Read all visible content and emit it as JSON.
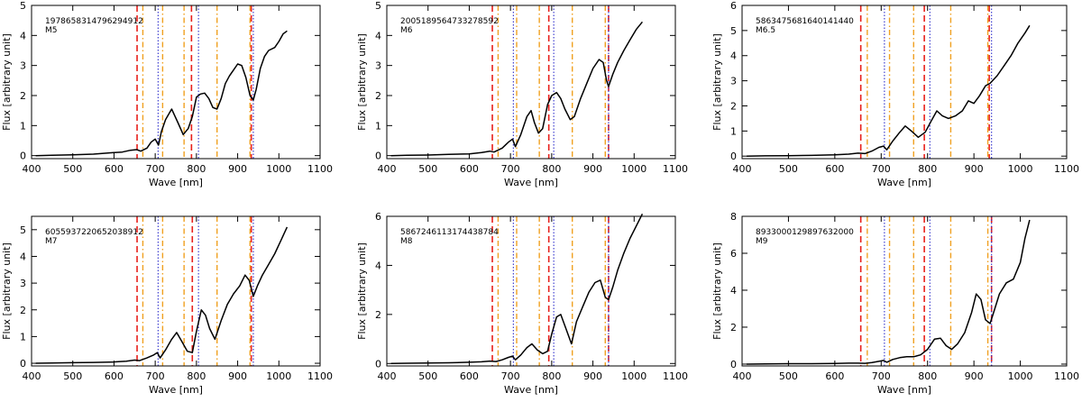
{
  "figure_title": "",
  "colors": {
    "line_red": "#e8201b",
    "line_orange": "#f0a020",
    "line_blue": "#3030cc",
    "spectrum": "#000000"
  },
  "chart_data": [
    {
      "type": "line",
      "id_label": "1978658314796294912",
      "spectral_type": "M5",
      "xlabel": "Wave [nm]",
      "ylabel": "Flux [arbitrary unit]",
      "xlim": [
        400,
        1100
      ],
      "ylim": [
        -0.1,
        5
      ],
      "xticks": [
        "400",
        "500",
        "600",
        "700",
        "800",
        "900",
        "1000",
        "1100"
      ],
      "yticks": [
        "0",
        "1",
        "2",
        "3",
        "4",
        "5"
      ],
      "lines": {
        "red_dashed": [
          656,
          788,
          933
        ],
        "orange_dashdot": [
          670,
          718,
          770,
          850,
          930
        ],
        "blue_dotted": [
          707,
          805,
          938
        ]
      },
      "x": [
        410,
        450,
        500,
        550,
        600,
        620,
        640,
        655,
        665,
        680,
        690,
        700,
        708,
        715,
        725,
        740,
        755,
        768,
        780,
        790,
        800,
        810,
        820,
        830,
        840,
        850,
        860,
        870,
        880,
        890,
        900,
        910,
        920,
        930,
        938,
        945,
        955,
        965,
        975,
        990,
        1000,
        1010,
        1020
      ],
      "y": [
        0,
        0.01,
        0.03,
        0.05,
        0.1,
        0.12,
        0.18,
        0.2,
        0.15,
        0.25,
        0.45,
        0.55,
        0.35,
        0.8,
        1.2,
        1.55,
        1.1,
        0.7,
        0.9,
        1.3,
        1.95,
        2.05,
        2.08,
        1.9,
        1.6,
        1.55,
        1.9,
        2.4,
        2.65,
        2.85,
        3.05,
        3.0,
        2.6,
        2.0,
        1.85,
        2.2,
        2.9,
        3.3,
        3.5,
        3.6,
        3.8,
        4.05,
        4.15
      ]
    },
    {
      "type": "line",
      "id_label": "2005189564733278592",
      "spectral_type": "M6",
      "xlabel": "Wave [nm]",
      "ylabel": "Flux [arbitrary unit]",
      "xlim": [
        400,
        1100
      ],
      "ylim": [
        -0.1,
        5
      ],
      "xticks": [
        "400",
        "500",
        "600",
        "700",
        "800",
        "900",
        "1000",
        "1100"
      ],
      "yticks": [
        "0",
        "1",
        "2",
        "3",
        "4",
        "5"
      ],
      "lines": {
        "red_dashed": [
          656,
          793,
          938
        ],
        "orange_dashdot": [
          670,
          715,
          770,
          850,
          930
        ],
        "blue_dotted": [
          707,
          805,
          938
        ]
      },
      "x": [
        410,
        450,
        500,
        550,
        600,
        630,
        650,
        660,
        680,
        695,
        705,
        712,
        725,
        740,
        750,
        758,
        768,
        778,
        790,
        800,
        812,
        822,
        832,
        845,
        855,
        870,
        885,
        900,
        915,
        925,
        933,
        938,
        948,
        960,
        975,
        990,
        1005,
        1020
      ],
      "y": [
        0,
        0.01,
        0.02,
        0.04,
        0.06,
        0.1,
        0.15,
        0.12,
        0.25,
        0.45,
        0.55,
        0.3,
        0.7,
        1.3,
        1.5,
        1.1,
        0.75,
        0.9,
        1.7,
        2.0,
        2.1,
        1.9,
        1.55,
        1.2,
        1.3,
        1.9,
        2.4,
        2.9,
        3.2,
        3.1,
        2.5,
        2.3,
        2.7,
        3.1,
        3.5,
        3.85,
        4.2,
        4.45
      ]
    },
    {
      "type": "line",
      "id_label": "5863475681640141440",
      "spectral_type": "M6.5",
      "xlabel": "Wave [nm]",
      "ylabel": "Flux [arbitrary unit]",
      "xlim": [
        400,
        1100
      ],
      "ylim": [
        -0.1,
        6
      ],
      "xticks": [
        "400",
        "500",
        "600",
        "700",
        "800",
        "900",
        "1000",
        "1100"
      ],
      "yticks": [
        "0",
        "1",
        "2",
        "3",
        "4",
        "5",
        "6"
      ],
      "lines": {
        "red_dashed": [
          656,
          793,
          933
        ],
        "orange_dashdot": [
          670,
          718,
          770,
          850,
          930
        ],
        "blue_dotted": [
          707,
          805,
          938
        ]
      },
      "x": [
        410,
        450,
        500,
        550,
        600,
        630,
        650,
        665,
        680,
        695,
        705,
        712,
        725,
        740,
        752,
        765,
        780,
        795,
        808,
        820,
        832,
        845,
        860,
        875,
        888,
        900,
        912,
        925,
        935,
        950,
        965,
        980,
        995,
        1010,
        1020
      ],
      "y": [
        0,
        0.01,
        0.02,
        0.03,
        0.05,
        0.08,
        0.12,
        0.1,
        0.2,
        0.35,
        0.4,
        0.25,
        0.6,
        0.95,
        1.2,
        1.0,
        0.75,
        0.95,
        1.4,
        1.8,
        1.6,
        1.5,
        1.6,
        1.8,
        2.2,
        2.1,
        2.4,
        2.8,
        2.9,
        3.2,
        3.6,
        4.0,
        4.5,
        4.9,
        5.2
      ]
    },
    {
      "type": "line",
      "id_label": "6055937220652038912",
      "spectral_type": "M7",
      "xlabel": "Wave [nm]",
      "ylabel": "Flux [arbitrary unit]",
      "xlim": [
        400,
        1100
      ],
      "ylim": [
        -0.1,
        5.5
      ],
      "xticks": [
        "400",
        "500",
        "600",
        "700",
        "800",
        "900",
        "1000",
        "1100"
      ],
      "yticks": [
        "0",
        "1",
        "2",
        "3",
        "4",
        "5"
      ],
      "lines": {
        "red_dashed": [
          656,
          790,
          933
        ],
        "orange_dashdot": [
          670,
          718,
          770,
          850,
          930
        ],
        "blue_dotted": [
          707,
          805,
          938
        ]
      },
      "x": [
        410,
        450,
        500,
        550,
        600,
        630,
        650,
        662,
        680,
        695,
        705,
        712,
        725,
        740,
        752,
        765,
        778,
        790,
        800,
        812,
        822,
        832,
        845,
        860,
        875,
        890,
        905,
        918,
        928,
        938,
        948,
        960,
        975,
        990,
        1005,
        1020
      ],
      "y": [
        0,
        0.01,
        0.02,
        0.03,
        0.05,
        0.08,
        0.12,
        0.1,
        0.2,
        0.3,
        0.4,
        0.2,
        0.5,
        0.9,
        1.15,
        0.8,
        0.45,
        0.4,
        1.2,
        2.0,
        1.8,
        1.3,
        0.9,
        1.6,
        2.2,
        2.6,
        2.9,
        3.3,
        3.1,
        2.5,
        2.9,
        3.3,
        3.7,
        4.1,
        4.6,
        5.1
      ]
    },
    {
      "type": "line",
      "id_label": "5867246113174438784",
      "spectral_type": "M8",
      "xlabel": "Wave [nm]",
      "ylabel": "Flux [arbitrary unit]",
      "xlim": [
        400,
        1100
      ],
      "ylim": [
        -0.1,
        6
      ],
      "xticks": [
        "400",
        "500",
        "600",
        "700",
        "800",
        "900",
        "1000",
        "1100"
      ],
      "yticks": [
        "0",
        "2",
        "4",
        "6"
      ],
      "lines": {
        "red_dashed": [
          656,
          793,
          938
        ],
        "orange_dashdot": [
          670,
          715,
          770,
          850,
          930
        ],
        "blue_dotted": [
          707,
          805,
          938
        ]
      },
      "x": [
        410,
        450,
        500,
        550,
        600,
        630,
        650,
        665,
        680,
        695,
        705,
        712,
        725,
        740,
        752,
        765,
        778,
        790,
        800,
        812,
        822,
        835,
        848,
        860,
        875,
        890,
        905,
        918,
        930,
        938,
        948,
        960,
        975,
        990,
        1005,
        1020
      ],
      "y": [
        0,
        0.01,
        0.02,
        0.03,
        0.05,
        0.07,
        0.1,
        0.08,
        0.15,
        0.25,
        0.3,
        0.15,
        0.35,
        0.65,
        0.8,
        0.55,
        0.4,
        0.5,
        1.2,
        1.9,
        2.0,
        1.4,
        0.8,
        1.7,
        2.3,
        2.9,
        3.3,
        3.4,
        2.7,
        2.6,
        3.1,
        3.8,
        4.5,
        5.1,
        5.6,
        6.1
      ]
    },
    {
      "type": "line",
      "id_label": "8933000129897632000",
      "spectral_type": "M9",
      "xlabel": "Wave [nm]",
      "ylabel": "Flux [arbitrary unit]",
      "xlim": [
        400,
        1100
      ],
      "ylim": [
        -0.1,
        8
      ],
      "xticks": [
        "400",
        "500",
        "600",
        "700",
        "800",
        "900",
        "1000",
        "1100"
      ],
      "yticks": [
        "0",
        "2",
        "4",
        "6",
        "8"
      ],
      "lines": {
        "red_dashed": [
          656,
          793,
          938
        ],
        "orange_dashdot": [
          670,
          718,
          770,
          850,
          930
        ],
        "blue_dotted": [
          707,
          805,
          938
        ]
      },
      "x": [
        410,
        450,
        500,
        550,
        600,
        630,
        650,
        665,
        680,
        695,
        705,
        712,
        725,
        740,
        755,
        770,
        785,
        800,
        815,
        828,
        840,
        852,
        865,
        880,
        895,
        905,
        915,
        925,
        935,
        945,
        955,
        970,
        985,
        1000,
        1010,
        1020
      ],
      "y": [
        0,
        0.01,
        0.02,
        0.02,
        0.03,
        0.05,
        0.05,
        0.04,
        0.08,
        0.15,
        0.2,
        0.1,
        0.25,
        0.35,
        0.4,
        0.4,
        0.5,
        0.8,
        1.35,
        1.4,
        1.0,
        0.8,
        1.1,
        1.7,
        2.8,
        3.8,
        3.5,
        2.4,
        2.2,
        3.0,
        3.8,
        4.4,
        4.6,
        5.5,
        6.8,
        7.8
      ]
    }
  ]
}
